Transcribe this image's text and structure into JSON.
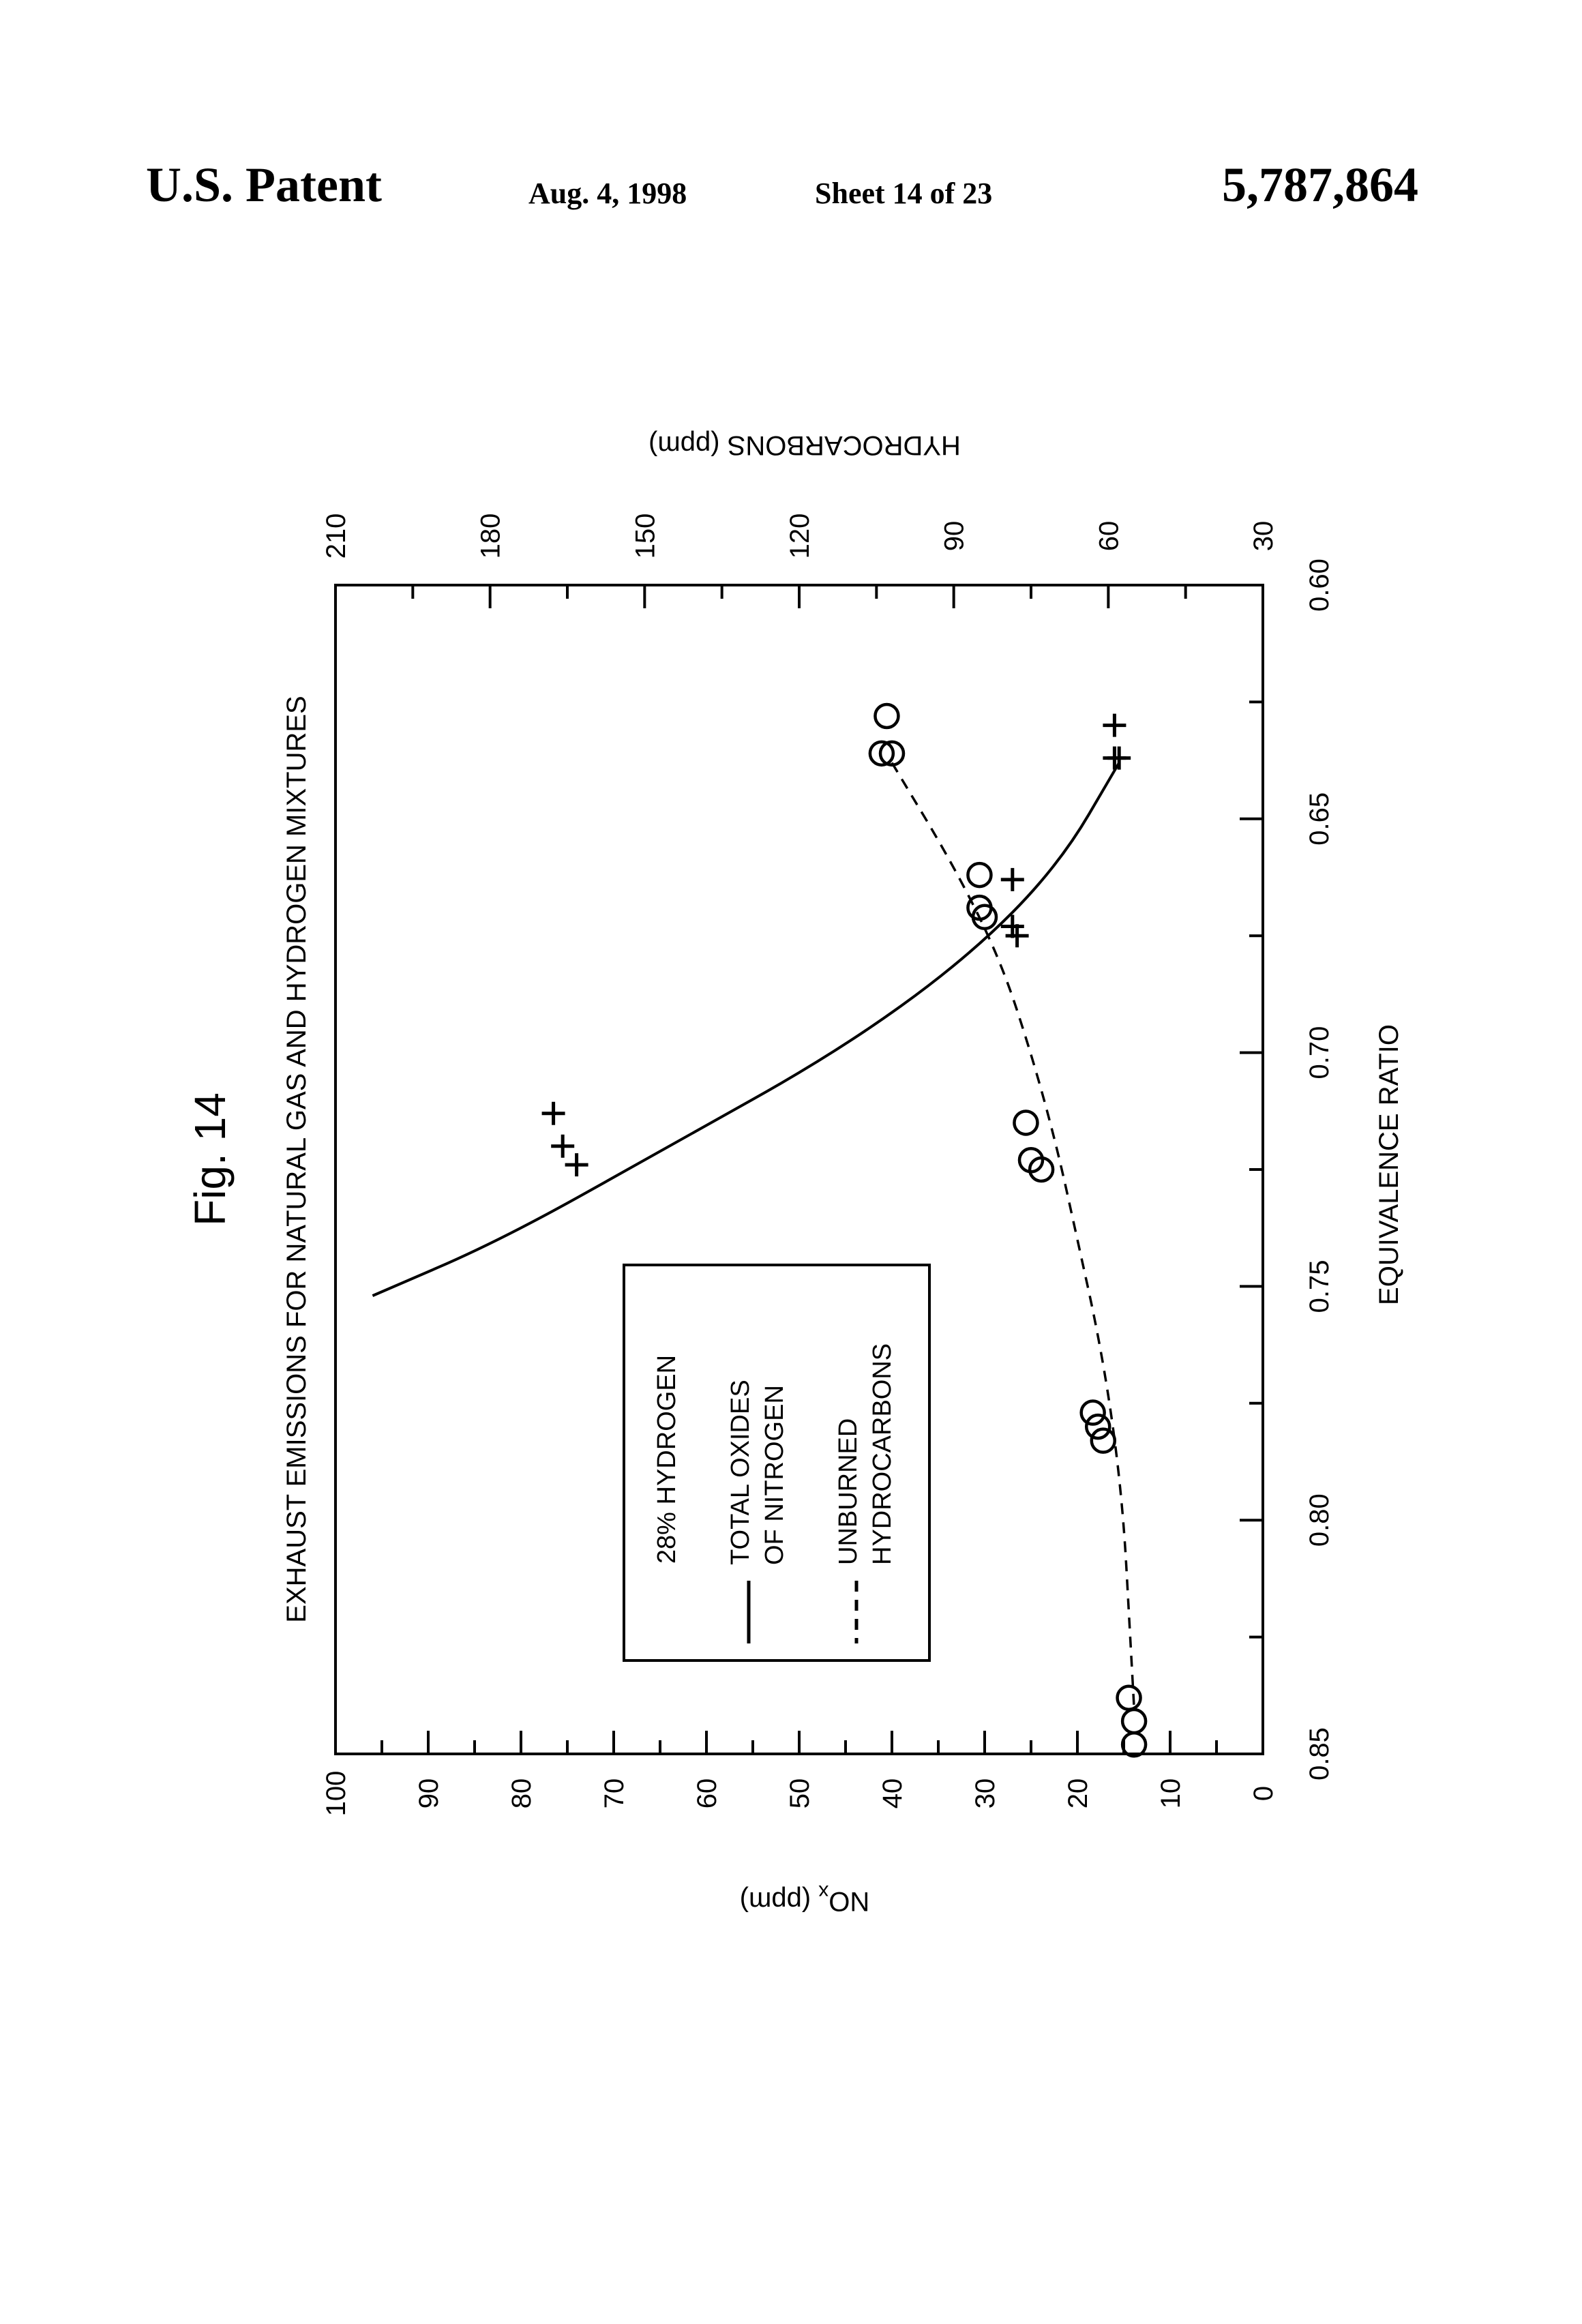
{
  "header": {
    "patent": "U.S. Patent",
    "date": "Aug. 4, 1998",
    "sheet": "Sheet 14 of 23",
    "number": "5,787,864"
  },
  "figure_label": "Fig. 14",
  "chart_data": {
    "type": "scatter",
    "title": "EXHAUST EMISSIONS FOR NATURAL GAS AND HYDROGEN MIXTURES",
    "xlabel": "EQUIVALENCE RATIO",
    "xlim": [
      0.6,
      0.85
    ],
    "xticks": [
      "0.60",
      "0.65",
      "0.70",
      "0.75",
      "0.80",
      "0.85"
    ],
    "ylabel_left": "NOx (ppm)",
    "ylim_left": [
      0,
      100
    ],
    "yticks_left": [
      "0",
      "10",
      "20",
      "30",
      "40",
      "50",
      "60",
      "70",
      "80",
      "90",
      "100"
    ],
    "ylabel_right": "HYDROCARBONS (ppm)",
    "ylim_right": [
      30,
      210
    ],
    "yticks_right": [
      "30",
      "60",
      "90",
      "120",
      "150",
      "180",
      "210"
    ],
    "orientation": "rotated 90° counter-clockwise on the page",
    "legend": {
      "heading": "28% HYDROGEN",
      "items": [
        {
          "line1": "TOTAL OXIDES",
          "line2": "OF NITROGEN",
          "style": "solid"
        },
        {
          "line1": "UNBURNED",
          "line2": "HYDROCARBONS",
          "style": "dashed"
        }
      ]
    },
    "series": [
      {
        "name": "TOTAL OXIDES OF NITROGEN",
        "axis": "left",
        "marker": "plus",
        "points": [
          [
            0.63,
            16
          ],
          [
            0.637,
            16
          ],
          [
            0.637,
            15.5
          ],
          [
            0.663,
            27
          ],
          [
            0.673,
            27
          ],
          [
            0.675,
            26.5
          ],
          [
            0.713,
            76.5
          ],
          [
            0.72,
            75.5
          ],
          [
            0.724,
            74
          ]
        ],
        "curve": [
          [
            0.638,
            15.5
          ],
          [
            0.66,
            22
          ],
          [
            0.68,
            32
          ],
          [
            0.7,
            46
          ],
          [
            0.72,
            64
          ],
          [
            0.74,
            82
          ],
          [
            0.752,
            96
          ]
        ]
      },
      {
        "name": "UNBURNED HYDROCARBONS",
        "axis": "right",
        "marker": "circle",
        "points": [
          [
            0.628,
            103
          ],
          [
            0.636,
            104
          ],
          [
            0.636,
            102
          ],
          [
            0.662,
            85
          ],
          [
            0.669,
            85
          ],
          [
            0.671,
            84
          ],
          [
            0.715,
            76
          ],
          [
            0.723,
            75
          ],
          [
            0.725,
            73
          ],
          [
            0.777,
            63
          ],
          [
            0.78,
            62
          ],
          [
            0.783,
            61
          ],
          [
            0.838,
            56
          ],
          [
            0.843,
            55
          ],
          [
            0.848,
            55
          ]
        ],
        "curve": [
          [
            0.638,
            102
          ],
          [
            0.66,
            90
          ],
          [
            0.68,
            81
          ],
          [
            0.7,
            75
          ],
          [
            0.72,
            70
          ],
          [
            0.74,
            66
          ],
          [
            0.76,
            62
          ],
          [
            0.78,
            59
          ],
          [
            0.8,
            57
          ],
          [
            0.82,
            56
          ],
          [
            0.84,
            55
          ]
        ]
      }
    ]
  }
}
